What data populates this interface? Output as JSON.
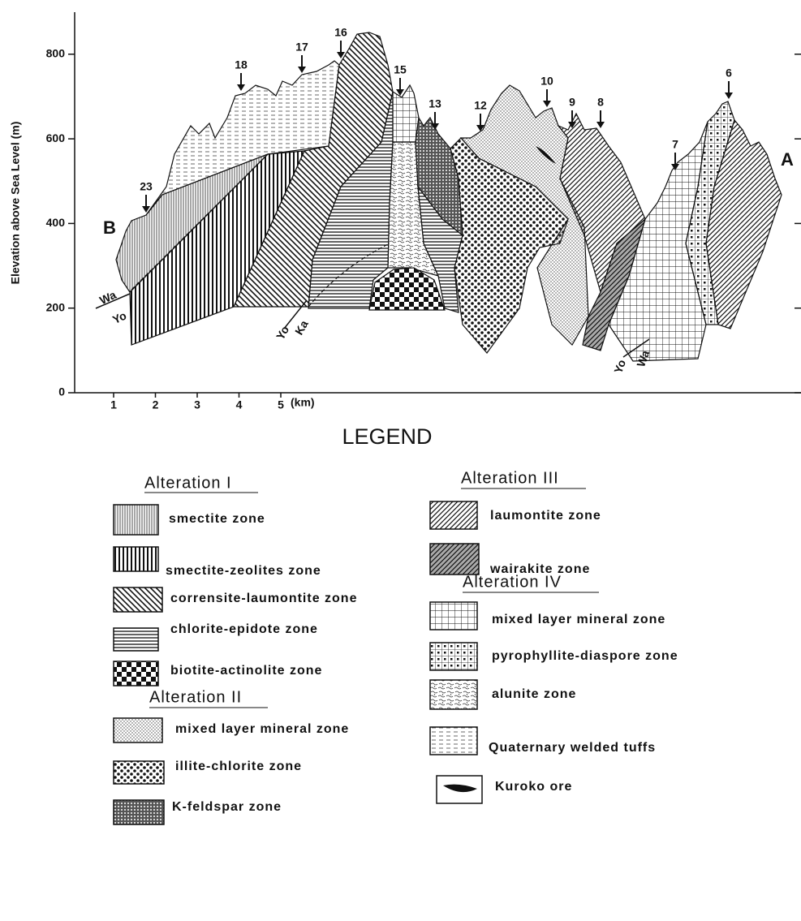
{
  "axes": {
    "y_label": "Elevation above Sea Level (m)",
    "yticks": [
      0,
      200,
      400,
      600,
      800
    ],
    "xticks": [
      1,
      2,
      3,
      4,
      5
    ],
    "x_unit": "(km)"
  },
  "section": {
    "end_left": "B",
    "end_right": "A",
    "stations": [
      "23",
      "18",
      "17",
      "16",
      "15",
      "13",
      "12",
      "10",
      "9",
      "8",
      "7",
      "6"
    ],
    "contacts": [
      "Wa",
      "Yo",
      "Yo",
      "Ka",
      "Yo",
      "Wa"
    ]
  },
  "legend": {
    "title": "LEGEND",
    "groups": [
      {
        "title": "Alteration I",
        "items": [
          "smectite zone",
          "smectite-zeolites zone",
          "corrensite-laumontite zone",
          "chlorite-epidote zone",
          "biotite-actinolite zone"
        ]
      },
      {
        "title": "Alteration II",
        "items": [
          "mixed layer mineral zone",
          "illite-chlorite zone",
          "K-feldspar zone"
        ]
      },
      {
        "title": "Alteration III",
        "items": [
          "laumontite zone",
          "wairakite zone"
        ]
      },
      {
        "title": "Alteration IV",
        "items": [
          "mixed layer mineral zone",
          "pyrophyllite-diaspore zone",
          "alunite zone"
        ]
      }
    ],
    "others": [
      "Quaternary welded tuffs",
      "Kuroko ore"
    ]
  }
}
